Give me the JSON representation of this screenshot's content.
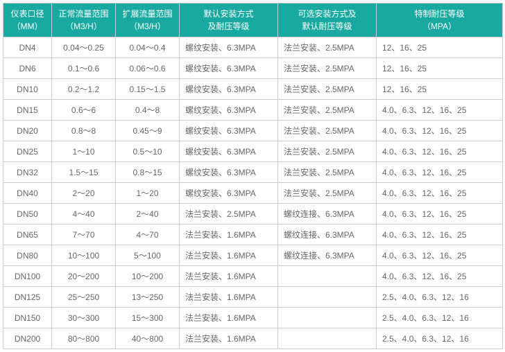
{
  "table": {
    "header_bg": "#1aa9a0",
    "header_color": "#ffffff",
    "cell_color": "#666666",
    "border_color": "#cccccc",
    "columns": [
      {
        "label_l1": "仪表口径",
        "label_l2": "（MM）"
      },
      {
        "label_l1": "正常流量范围",
        "label_l2": "（M3/H）"
      },
      {
        "label_l1": "扩展流量范围",
        "label_l2": "（M3/H）"
      },
      {
        "label_l1": "默认安装方式",
        "label_l2": "及耐压等级"
      },
      {
        "label_l1": "可选安装方式及",
        "label_l2": "默认耐压等级"
      },
      {
        "label_l1": "特制耐压等级",
        "label_l2": "（MPA）"
      }
    ],
    "rows": [
      {
        "c1": "DN4",
        "c2": "0.04～0.25",
        "c3": "0.04～0.4",
        "c4": "螺纹安装、6.3MPA",
        "c5": "法兰安装、2.5MPA",
        "c6": "12、16、25"
      },
      {
        "c1": "DN6",
        "c2": "0.1～0.6",
        "c3": "0.06～0.6",
        "c4": "螺纹安装、6.3MPA",
        "c5": "法兰安装、2.5MPA",
        "c6": "12、16、25"
      },
      {
        "c1": "DN10",
        "c2": "0.2～1.2",
        "c3": "0.15～1.5",
        "c4": "螺纹安装、6.3MPA",
        "c5": "法兰安装、2.5MPA",
        "c6": "12、16、25"
      },
      {
        "c1": "DN15",
        "c2": "0.6～6",
        "c3": "0.4～8",
        "c4": "螺纹安装、6.3MPA",
        "c5": "法兰安装、2.5MPA",
        "c6": "4.0、6.3、12、16、25"
      },
      {
        "c1": "DN20",
        "c2": "0.8～8",
        "c3": "0.45～9",
        "c4": "螺纹安装、6.3MPA",
        "c5": "法兰安装、2.5MPA",
        "c6": "4.0、6.3、12、16、25"
      },
      {
        "c1": "DN25",
        "c2": "1～10",
        "c3": "0.5～10",
        "c4": "螺纹安装、6.3MPA",
        "c5": "法兰安装、2.5MPA",
        "c6": "4.0、6.3、12、16、25"
      },
      {
        "c1": "DN32",
        "c2": "1.5～15",
        "c3": "0.8～15",
        "c4": "螺纹安装、6.3MPA",
        "c5": "法兰安装、2.5MPA",
        "c6": "4.0、6.3、12、16、25"
      },
      {
        "c1": "DN40",
        "c2": "2～20",
        "c3": "1～20",
        "c4": "螺纹安装、6.3MPA",
        "c5": "法兰安装、2.5MPA",
        "c6": "4.0、6.3、12、16、25"
      },
      {
        "c1": "DN50",
        "c2": "4～40",
        "c3": "2～40",
        "c4": "法兰安装、2.5MPA",
        "c5": "螺纹连接、6.3MPA",
        "c6": "4.0、6.3、12、16、25"
      },
      {
        "c1": "DN65",
        "c2": "7～70",
        "c3": "4～70",
        "c4": "法兰安装、1.6MPA",
        "c5": "螺纹连接、6.3MPA",
        "c6": "4.0、6.3、12、16、25"
      },
      {
        "c1": "DN80",
        "c2": "10～100",
        "c3": "5～100",
        "c4": "法兰安装、1.6MPA",
        "c5": "螺纹连接、6.3MPA",
        "c6": "4.0、6.3、12、16、25"
      },
      {
        "c1": "DN100",
        "c2": "20～200",
        "c3": "10～200",
        "c4": "法兰安装、1.6MPA",
        "c5": "",
        "c6": "4.0、6.3、12、16、25"
      },
      {
        "c1": "DN125",
        "c2": "25～250",
        "c3": "13～250",
        "c4": "法兰安装、1.6MPA",
        "c5": "",
        "c6": "2.5、4.0、6.3、12、16"
      },
      {
        "c1": "DN150",
        "c2": "30～300",
        "c3": "15～300",
        "c4": "法兰安装、1.6MPA",
        "c5": "",
        "c6": "2.5、4.0、6.3、12、16"
      },
      {
        "c1": "DN200",
        "c2": "80～800",
        "c3": "40～800",
        "c4": "法兰安装、1.6MPA",
        "c5": "",
        "c6": "2.5、4.0、6.3、12、16"
      }
    ]
  }
}
